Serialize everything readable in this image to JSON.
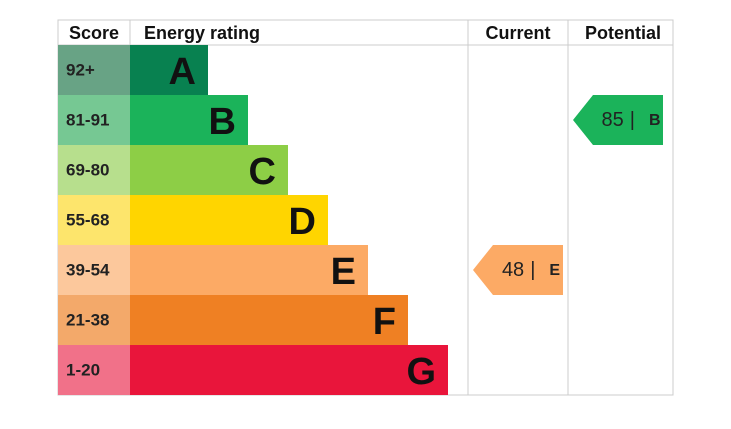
{
  "header": {
    "score": "Score",
    "rating": "Energy rating",
    "current": "Current",
    "potential": "Potential"
  },
  "bands": [
    {
      "range": "92+",
      "letter": "A",
      "color": "#088150",
      "score_color": "#68a385"
    },
    {
      "range": "81-91",
      "letter": "B",
      "color": "#1bb35a",
      "score_color": "#76c893"
    },
    {
      "range": "69-80",
      "letter": "C",
      "color": "#8dce46",
      "score_color": "#b7df8d"
    },
    {
      "range": "55-68",
      "letter": "D",
      "color": "#ffd500",
      "score_color": "#fde56c"
    },
    {
      "range": "39-54",
      "letter": "E",
      "color": "#fcaa65",
      "score_color": "#fcc89c"
    },
    {
      "range": "21-38",
      "letter": "F",
      "color": "#ef8023",
      "score_color": "#f3a96a"
    },
    {
      "range": "1-20",
      "letter": "G",
      "color": "#e9153b",
      "score_color": "#f17189"
    }
  ],
  "current": {
    "value": 48,
    "letter": "E"
  },
  "potential": {
    "value": 85,
    "letter": "B"
  },
  "separator": "|"
}
